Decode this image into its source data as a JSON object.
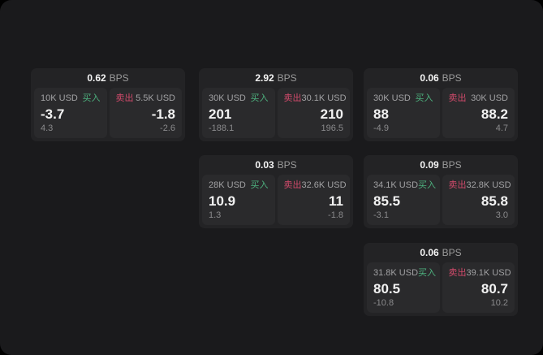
{
  "labels": {
    "bps_unit": "BPS",
    "buy": "买入",
    "sell": "卖出"
  },
  "colors": {
    "buy-green": "#4db07e",
    "sell-red": "#d14a6b",
    "page-bg": "#1a1a1c",
    "card-bg": "#232325",
    "panel-bg": "#2a2a2c"
  },
  "cards": [
    {
      "bps": "0.62",
      "buy": {
        "amount": "10K USD",
        "value": "-3.7",
        "sub": "4.3"
      },
      "sell": {
        "amount": "5.5K USD",
        "value": "-1.8",
        "sub": "-2.6"
      }
    },
    {
      "bps": "2.92",
      "buy": {
        "amount": "30K USD",
        "value": "201",
        "sub": "-188.1"
      },
      "sell": {
        "amount": "30.1K USD",
        "value": "210",
        "sub": "196.5"
      }
    },
    {
      "bps": "0.06",
      "buy": {
        "amount": "30K USD",
        "value": "88",
        "sub": "-4.9"
      },
      "sell": {
        "amount": "30K USD",
        "value": "88.2",
        "sub": "4.7"
      }
    },
    {
      "bps": "0.03",
      "buy": {
        "amount": "28K USD",
        "value": "10.9",
        "sub": "1.3"
      },
      "sell": {
        "amount": "32.6K USD",
        "value": "11",
        "sub": "-1.8"
      }
    },
    {
      "bps": "0.09",
      "buy": {
        "amount": "34.1K USD",
        "value": "85.5",
        "sub": "-3.1"
      },
      "sell": {
        "amount": "32.8K USD",
        "value": "85.8",
        "sub": "3.0"
      }
    },
    {
      "bps": "0.06",
      "buy": {
        "amount": "31.8K USD",
        "value": "80.5",
        "sub": "-10.8"
      },
      "sell": {
        "amount": "39.1K USD",
        "value": "80.7",
        "sub": "10.2"
      }
    }
  ]
}
